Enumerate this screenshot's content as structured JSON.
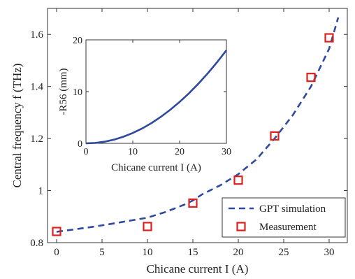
{
  "chart_data": [
    {
      "type": "line",
      "xlabel": "Chicane current  I  (A)",
      "ylabel": "Central frequency  f  (THz)",
      "xlim": [
        -1,
        32
      ],
      "ylim": [
        0.8,
        1.7
      ],
      "xticks": [
        "0",
        "5",
        "10",
        "15",
        "20",
        "25",
        "30"
      ],
      "yticks": [
        "0.8",
        "1",
        "1.2",
        "1.4",
        "1.6"
      ],
      "grid": false,
      "legend_position": "bottom-right",
      "series": [
        {
          "name": "GPT simulation",
          "style": "dashed-line",
          "color": "#2e4a9e",
          "x": [
            0,
            2,
            4,
            6,
            8,
            10,
            12,
            14,
            15,
            16,
            18,
            20,
            22,
            24,
            26,
            28,
            30,
            31
          ],
          "y": [
            0.842,
            0.851,
            0.861,
            0.872,
            0.884,
            0.896,
            0.918,
            0.945,
            0.962,
            0.985,
            1.02,
            1.063,
            1.12,
            1.2,
            1.29,
            1.4,
            1.545,
            1.665
          ]
        },
        {
          "name": "Measurement",
          "style": "open-square-markers",
          "color": "#e0201f",
          "x": [
            0,
            10,
            15,
            20,
            24,
            28,
            30
          ],
          "y": [
            0.843,
            0.862,
            0.952,
            1.04,
            1.21,
            1.435,
            1.587
          ]
        }
      ]
    },
    {
      "type": "line",
      "xlabel": "Chicane current  I  (A)",
      "ylabel": "-R56  (mm)",
      "xlim": [
        0,
        30
      ],
      "ylim": [
        0,
        20
      ],
      "xticks": [
        "0",
        "10",
        "20",
        "30"
      ],
      "yticks": [
        "0",
        "10",
        "20"
      ],
      "series": [
        {
          "color": "#2e4a9e",
          "x": [
            0,
            2,
            4,
            6,
            8,
            10,
            12,
            14,
            16,
            18,
            20,
            22,
            24,
            26,
            28,
            30
          ],
          "y": [
            0,
            0.08,
            0.32,
            0.72,
            1.28,
            2.0,
            2.88,
            3.92,
            5.12,
            6.48,
            8.0,
            9.68,
            11.52,
            13.52,
            15.68,
            18.0
          ]
        }
      ]
    }
  ]
}
